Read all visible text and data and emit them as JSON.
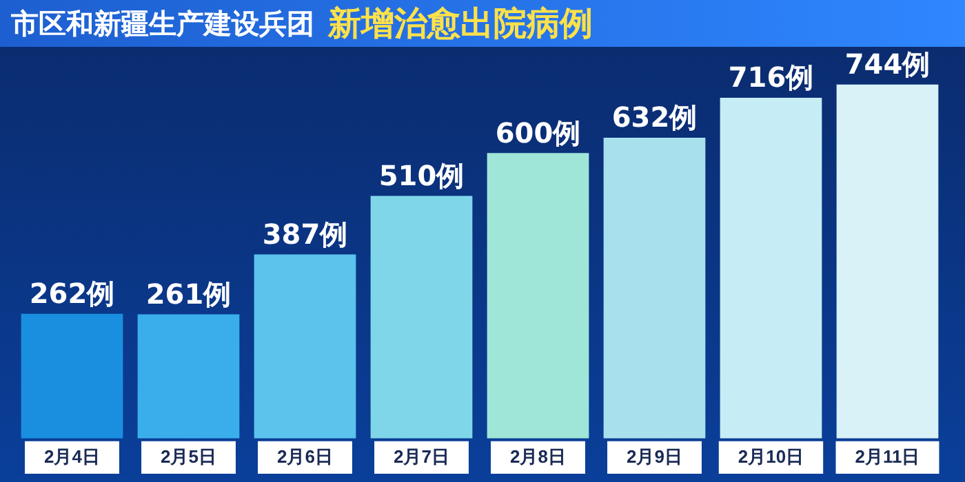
{
  "chart_data": {
    "type": "bar",
    "title": "市区和新疆生产建设兵团",
    "subtitle": "新增治愈出院病例",
    "categories": [
      "2月4日",
      "2月5日",
      "2月6日",
      "2月7日",
      "2月8日",
      "2月9日",
      "2月10日",
      "2月11日"
    ],
    "values": [
      262,
      261,
      387,
      510,
      600,
      632,
      716,
      744
    ],
    "value_labels": [
      "262例",
      "261例",
      "387例",
      "510例",
      "600例",
      "632例",
      "716例",
      "744例"
    ],
    "colors": [
      "#1a8fe0",
      "#3aaeea",
      "#5cc3ec",
      "#7fd6e8",
      "#9fe6d8",
      "#a9e0ee",
      "#c6ecf6",
      "#d8f2f8"
    ],
    "grid": false,
    "legend": false
  }
}
